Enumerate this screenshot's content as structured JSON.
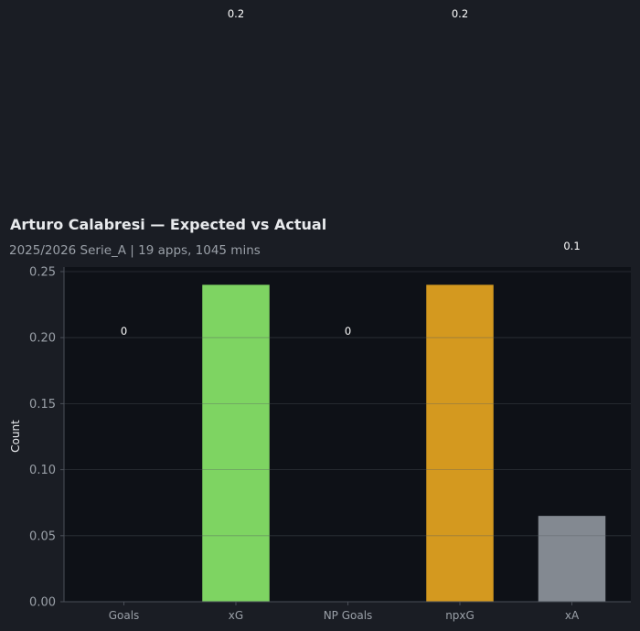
{
  "chart_data": {
    "type": "bar",
    "title": "Arturo Calabresi — Expected vs Actual",
    "subtitle": "2025/2026 Serie_A | 19 apps, 1045 mins",
    "ylabel": "Count",
    "xlabel": "",
    "categories": [
      "Goals",
      "xG",
      "NP Goals",
      "npxG",
      "xA"
    ],
    "values": [
      0,
      0.24,
      0,
      0.24,
      0.065
    ],
    "data_labels": [
      "0",
      "0.2",
      "0",
      "0.2",
      "0.1"
    ],
    "colors": [
      "#e05c52",
      "#7ed462",
      "#4f7fd6",
      "#d4991f",
      "#838991"
    ],
    "ylim": [
      0,
      0.25
    ],
    "yticks": [
      0.0,
      0.05,
      0.1,
      0.15,
      0.2,
      0.25
    ],
    "ytick_labels": [
      "0.00",
      "0.05",
      "0.10",
      "0.15",
      "0.20",
      "0.25"
    ],
    "grid": true,
    "theme": {
      "page_bg": "#1a1d24",
      "plot_bg": "#0e1117",
      "axis_color": "#4a4f58",
      "grid_color": "#555a62"
    }
  }
}
